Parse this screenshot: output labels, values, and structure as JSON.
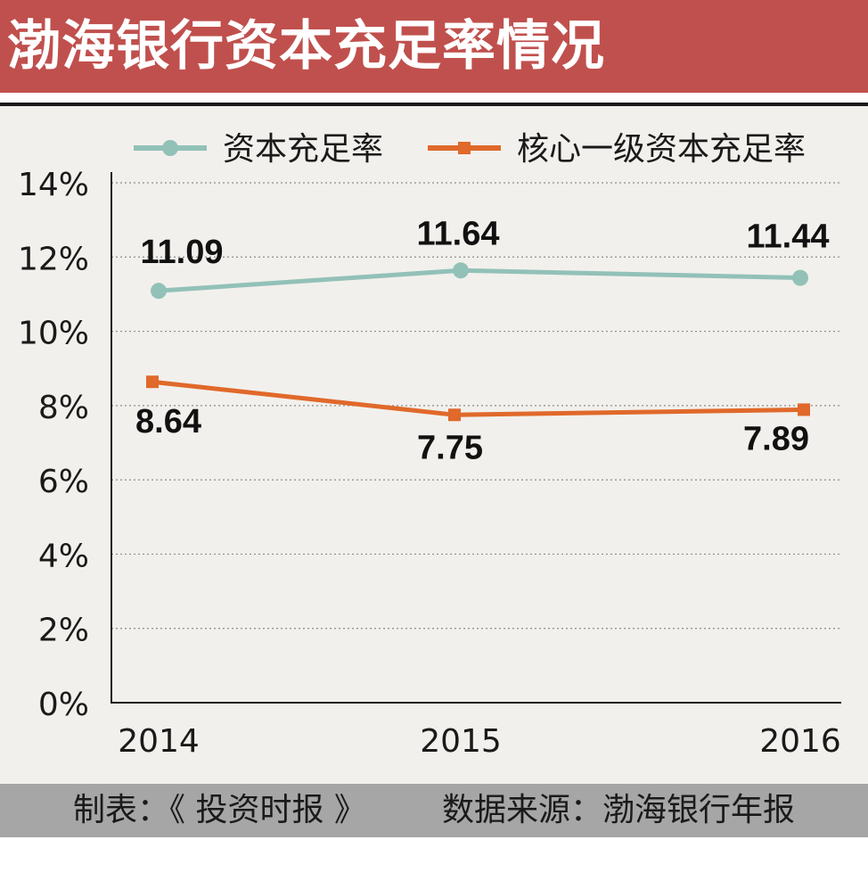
{
  "header": {
    "title": "渤海银行资本充足率情况"
  },
  "footer": {
    "credit": "制表：《 投资时报 》",
    "source": "数据来源：渤海银行年报"
  },
  "colors": {
    "header_bg": "#c0504d",
    "plot_bg": "#f2f0ec",
    "footer_bg": "#a6a6a6",
    "series_capital": "#92c1b8",
    "series_core": "#e0692b"
  },
  "chart_data": {
    "type": "line",
    "categories": [
      "2014",
      "2015",
      "2016"
    ],
    "ylim": [
      0,
      14
    ],
    "yticks": [
      "0%",
      "2%",
      "4%",
      "6%",
      "8%",
      "10%",
      "12%",
      "14%"
    ],
    "grid": true,
    "legend_position": "top",
    "series": [
      {
        "name": "资本充足率",
        "values": [
          11.09,
          11.64,
          11.44
        ],
        "labels": [
          "11.09",
          "11.64",
          "11.44"
        ],
        "marker": "circle",
        "color": "#92c1b8"
      },
      {
        "name": "核心一级资本充足率",
        "values": [
          8.64,
          7.75,
          7.89
        ],
        "labels": [
          "8.64",
          "7.75",
          "7.89"
        ],
        "marker": "square",
        "color": "#e0692b"
      }
    ]
  }
}
